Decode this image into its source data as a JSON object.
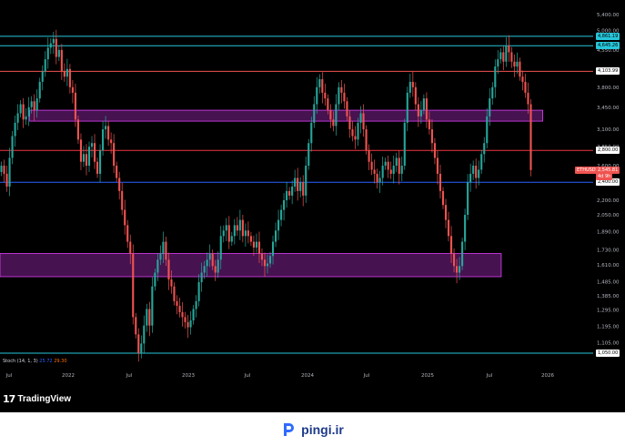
{
  "chart_data": {
    "type": "candlestick",
    "symbol": "ETHUSDT",
    "current_price": "2,545.81",
    "countdown": "4d 9h",
    "y_scale": "log",
    "ylim": [
      1050,
      5400
    ],
    "y_ticks": [
      "5,400.00",
      "5,000.00",
      "4,550.00",
      "4,150.00",
      "3,800.00",
      "3,450.00",
      "3,100.00",
      "2,850.00",
      "2,600.00",
      "2,400.00",
      "2,200.00",
      "2,050.00",
      "1,890.00",
      "1,730.00",
      "1,610.00",
      "1,485.00",
      "1,385.00",
      "1,295.00",
      "1,195.00",
      "1,105.00"
    ],
    "x_ticks": [
      "Jul",
      "2022",
      "Jul",
      "2023",
      "Jul",
      "2024",
      "Jul",
      "2025",
      "Jul",
      "2026"
    ],
    "levels": [
      {
        "label": "4,861.19",
        "price": 4861.19,
        "color": "#26c6da",
        "tag_bg": "#26c6da",
        "tag_fg": "#000000"
      },
      {
        "label": "4,645.26",
        "price": 4645.26,
        "color": "#26c6da",
        "tag_bg": "#26c6da",
        "tag_fg": "#000000"
      },
      {
        "label": "4,103.99",
        "price": 4103.99,
        "color": "#ef5350",
        "tag_bg": "#ffffff",
        "tag_fg": "#000000"
      },
      {
        "label": "2,800.00",
        "price": 2800,
        "color": "#f23645",
        "tag_bg": "#ffffff",
        "tag_fg": "#000000"
      },
      {
        "label": "2,400.00",
        "price": 2400,
        "color": "#2962ff",
        "tag_bg": "#ffffff",
        "tag_fg": "#000000"
      },
      {
        "label": "1,050.00",
        "price": 1050,
        "color": "#26c6da",
        "tag_bg": "#ffffff",
        "tag_fg": "#000000"
      }
    ],
    "zones": [
      {
        "top": 3400,
        "bottom": 3225,
        "color": "#9c27b0",
        "stroke": "#e040fb",
        "x_from": 0.05,
        "x_to": 0.915
      },
      {
        "top": 1700,
        "bottom": 1520,
        "color": "#9c27b0",
        "stroke": "#e040fb",
        "x_from": 0.0,
        "x_to": 0.845
      }
    ],
    "indicator": {
      "name": "Stoch (14, 1, 3)",
      "k": "25.72",
      "d": "29.30"
    },
    "weekly_closes": [
      2600,
      2500,
      2350,
      2700,
      3000,
      3200,
      3350,
      3500,
      3250,
      3300,
      3450,
      3550,
      3400,
      3600,
      3900,
      4100,
      4350,
      4600,
      4700,
      4800,
      4400,
      4550,
      4100,
      4000,
      4150,
      3800,
      3700,
      3250,
      2950,
      2650,
      2750,
      2600,
      2850,
      2900,
      2650,
      2500,
      2800,
      3100,
      3150,
      2950,
      2900,
      2600,
      2450,
      2300,
      2100,
      1950,
      1800,
      1700,
      1250,
      1150,
      1050,
      1100,
      1200,
      1300,
      1200,
      1450,
      1550,
      1650,
      1700,
      1800,
      1650,
      1500,
      1450,
      1350,
      1320,
      1280,
      1250,
      1220,
      1190,
      1230,
      1300,
      1350,
      1480,
      1550,
      1600,
      1650,
      1700,
      1600,
      1550,
      1650,
      1850,
      1900,
      1950,
      1800,
      1850,
      1950,
      1900,
      2000,
      1850,
      1900,
      1850,
      1800,
      1750,
      1800,
      1700,
      1650,
      1600,
      1620,
      1680,
      1800,
      1900,
      2000,
      2100,
      2200,
      2300,
      2250,
      2350,
      2450,
      2300,
      2400,
      2250,
      2600,
      2900,
      3200,
      3500,
      3800,
      3950,
      3700,
      3600,
      3400,
      3250,
      3150,
      3500,
      3800,
      3700,
      3550,
      3300,
      3100,
      3000,
      2950,
      3200,
      3350,
      3100,
      2800,
      2650,
      2550,
      2500,
      2400,
      2450,
      2600,
      2650,
      2550,
      2500,
      2600,
      2700,
      2500,
      2600,
      3200,
      3700,
      3900,
      3800,
      3500,
      3300,
      3400,
      3600,
      3250,
      3100,
      2900,
      2700,
      2500,
      2300,
      2150,
      2000,
      1850,
      1700,
      1600,
      1550,
      1600,
      1800,
      2050,
      2400,
      2500,
      2600,
      2450,
      2550,
      2750,
      2900,
      3300,
      3600,
      3800,
      4200,
      4350,
      4500,
      4300,
      4650,
      4500,
      4300,
      4200,
      4300,
      4000,
      3900,
      3700,
      3500,
      2545.81
    ]
  }
}
